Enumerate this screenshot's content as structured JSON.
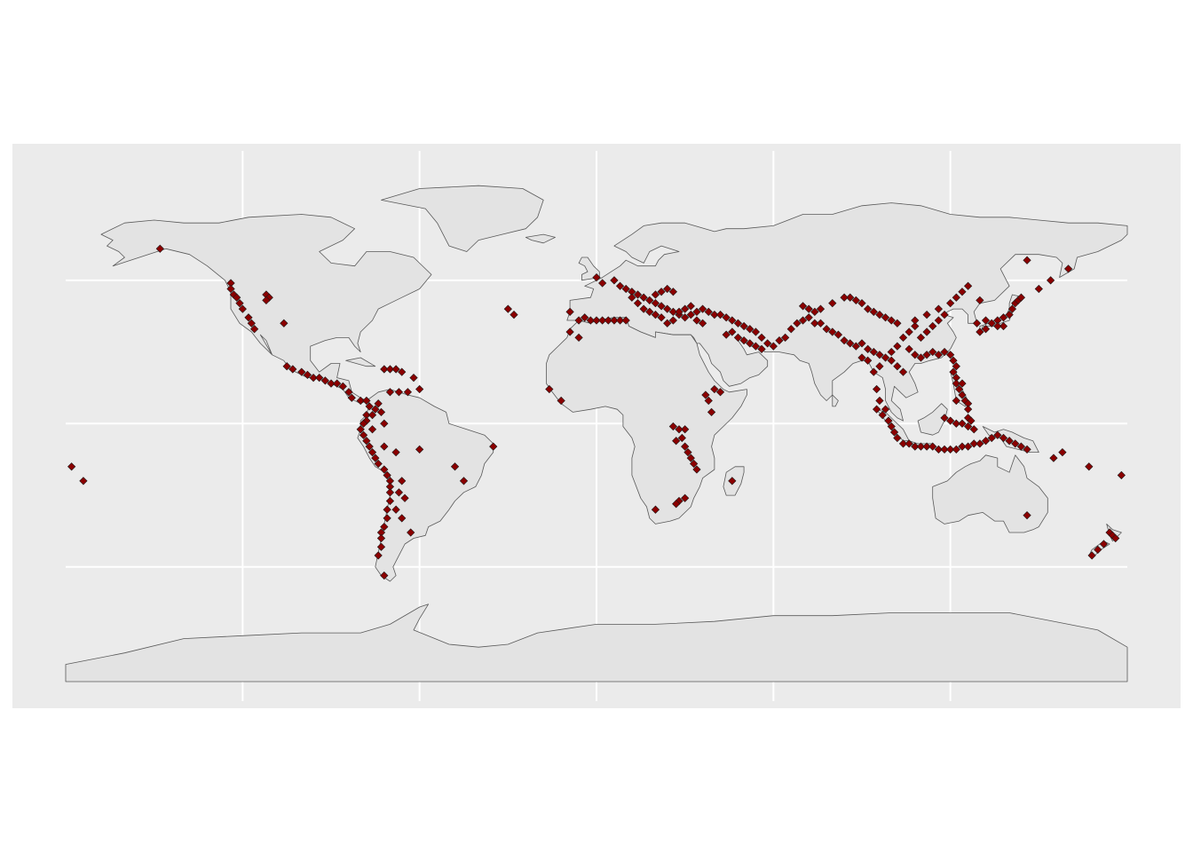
{
  "colors": {
    "panel_background": "#ebebeb",
    "land_fill": "#e3e3e3",
    "border_stroke": "#595959",
    "gridline": "#ffffff",
    "point_fill": "#8b0000",
    "point_stroke": "#1a1a1a",
    "page_background": "#ffffff"
  },
  "map": {
    "projection": "equirectangular",
    "lon_range": [
      -180,
      180
    ],
    "lat_range": [
      -90,
      84
    ],
    "grid_lon": [
      -120,
      -60,
      0,
      60,
      120
    ],
    "grid_lat": [
      -50,
      0,
      50
    ],
    "point_shape": "diamond"
  },
  "chart_data": {
    "type": "scatter",
    "title": "",
    "xlabel": "",
    "ylabel": "",
    "xlim": [
      -180,
      180
    ],
    "ylim": [
      -90,
      84
    ],
    "grid": true,
    "points": [
      [
        -148,
        61
      ],
      [
        -124,
        49
      ],
      [
        -124,
        47
      ],
      [
        -123,
        45
      ],
      [
        -122,
        44
      ],
      [
        -121,
        42
      ],
      [
        -120,
        40
      ],
      [
        -118,
        37
      ],
      [
        -117,
        35
      ],
      [
        -116,
        33
      ],
      [
        -112,
        45
      ],
      [
        -111,
        44
      ],
      [
        -112,
        43
      ],
      [
        -106,
        35
      ],
      [
        -105,
        20
      ],
      [
        -103,
        19
      ],
      [
        -100,
        18
      ],
      [
        -98,
        17
      ],
      [
        -96,
        16
      ],
      [
        -94,
        16
      ],
      [
        -92,
        15
      ],
      [
        -90,
        14
      ],
      [
        -88,
        14
      ],
      [
        -86,
        13
      ],
      [
        -84,
        11
      ],
      [
        -83,
        9
      ],
      [
        -80,
        8
      ],
      [
        -78,
        8
      ],
      [
        -72,
        19
      ],
      [
        -70,
        19
      ],
      [
        -68,
        19
      ],
      [
        -66,
        18
      ],
      [
        -62,
        16
      ],
      [
        -60,
        12
      ],
      [
        -64,
        11
      ],
      [
        -67,
        11
      ],
      [
        -70,
        11
      ],
      [
        -77,
        6
      ],
      [
        -78,
        3
      ],
      [
        -78,
        1
      ],
      [
        -79,
        0
      ],
      [
        -80,
        -2
      ],
      [
        -79,
        -4
      ],
      [
        -78,
        -6
      ],
      [
        -77,
        -8
      ],
      [
        -76,
        -10
      ],
      [
        -75,
        -12
      ],
      [
        -74,
        -14
      ],
      [
        -72,
        -16
      ],
      [
        -71,
        -18
      ],
      [
        -70,
        -20
      ],
      [
        -70,
        -22
      ],
      [
        -70,
        -24
      ],
      [
        -70,
        -27
      ],
      [
        -71,
        -30
      ],
      [
        -71,
        -33
      ],
      [
        -72,
        -36
      ],
      [
        -73,
        -38
      ],
      [
        -73,
        -40
      ],
      [
        -73,
        -43
      ],
      [
        -74,
        -46
      ],
      [
        -72,
        -53
      ],
      [
        -76,
        3
      ],
      [
        -75,
        5
      ],
      [
        -74,
        7
      ],
      [
        -73,
        4
      ],
      [
        -72,
        0
      ],
      [
        -76,
        -2
      ],
      [
        -72,
        -8
      ],
      [
        -68,
        -10
      ],
      [
        -66,
        -20
      ],
      [
        -67,
        -24
      ],
      [
        -65,
        -26
      ],
      [
        -68,
        -30
      ],
      [
        -66,
        -33
      ],
      [
        -63,
        -38
      ],
      [
        -60,
        -9
      ],
      [
        -48,
        -15
      ],
      [
        -45,
        -20
      ],
      [
        -35,
        -8
      ],
      [
        -30,
        40
      ],
      [
        -28,
        38
      ],
      [
        -178,
        -15
      ],
      [
        -174,
        -20
      ],
      [
        -9,
        39
      ],
      [
        -6,
        36
      ],
      [
        -4,
        37
      ],
      [
        -2,
        36
      ],
      [
        0,
        36
      ],
      [
        2,
        36
      ],
      [
        4,
        36
      ],
      [
        6,
        36
      ],
      [
        8,
        36
      ],
      [
        10,
        36
      ],
      [
        -9,
        32
      ],
      [
        -6,
        30
      ],
      [
        -16,
        12
      ],
      [
        -12,
        8
      ],
      [
        0,
        51
      ],
      [
        2,
        49
      ],
      [
        6,
        50
      ],
      [
        8,
        48
      ],
      [
        10,
        47
      ],
      [
        12,
        46
      ],
      [
        14,
        45
      ],
      [
        16,
        44
      ],
      [
        18,
        43
      ],
      [
        20,
        42
      ],
      [
        22,
        41
      ],
      [
        24,
        40
      ],
      [
        26,
        39
      ],
      [
        28,
        38
      ],
      [
        30,
        37
      ],
      [
        32,
        38
      ],
      [
        34,
        39
      ],
      [
        36,
        40
      ],
      [
        38,
        39
      ],
      [
        40,
        38
      ],
      [
        42,
        38
      ],
      [
        44,
        37
      ],
      [
        46,
        36
      ],
      [
        48,
        35
      ],
      [
        50,
        34
      ],
      [
        52,
        33
      ],
      [
        54,
        32
      ],
      [
        56,
        30
      ],
      [
        58,
        28
      ],
      [
        60,
        27
      ],
      [
        62,
        29
      ],
      [
        64,
        30
      ],
      [
        66,
        33
      ],
      [
        68,
        35
      ],
      [
        70,
        36
      ],
      [
        72,
        37
      ],
      [
        74,
        35
      ],
      [
        12,
        44
      ],
      [
        14,
        42
      ],
      [
        16,
        40
      ],
      [
        18,
        39
      ],
      [
        20,
        38
      ],
      [
        22,
        37
      ],
      [
        24,
        35
      ],
      [
        26,
        36
      ],
      [
        28,
        39
      ],
      [
        30,
        40
      ],
      [
        32,
        41
      ],
      [
        34,
        36
      ],
      [
        36,
        35
      ],
      [
        44,
        31
      ],
      [
        46,
        32
      ],
      [
        48,
        30
      ],
      [
        50,
        29
      ],
      [
        52,
        28
      ],
      [
        54,
        27
      ],
      [
        56,
        26
      ],
      [
        20,
        45
      ],
      [
        22,
        46
      ],
      [
        24,
        47
      ],
      [
        26,
        46
      ],
      [
        38,
        8
      ],
      [
        39,
        4
      ],
      [
        37,
        10
      ],
      [
        40,
        12
      ],
      [
        42,
        11
      ],
      [
        30,
        -2
      ],
      [
        29,
        -5
      ],
      [
        30,
        -8
      ],
      [
        31,
        -10
      ],
      [
        32,
        -12
      ],
      [
        33,
        -14
      ],
      [
        34,
        -16
      ],
      [
        28,
        -2
      ],
      [
        27,
        -6
      ],
      [
        26,
        -1
      ],
      [
        28,
        -27
      ],
      [
        30,
        -26
      ],
      [
        27,
        -28
      ],
      [
        20,
        -30
      ],
      [
        46,
        -20
      ],
      [
        76,
        35
      ],
      [
        78,
        33
      ],
      [
        80,
        32
      ],
      [
        82,
        31
      ],
      [
        84,
        29
      ],
      [
        86,
        28
      ],
      [
        88,
        27
      ],
      [
        90,
        28
      ],
      [
        92,
        26
      ],
      [
        94,
        25
      ],
      [
        96,
        24
      ],
      [
        98,
        23
      ],
      [
        100,
        22
      ],
      [
        102,
        20
      ],
      [
        104,
        18
      ],
      [
        100,
        25
      ],
      [
        102,
        27
      ],
      [
        104,
        30
      ],
      [
        106,
        32
      ],
      [
        108,
        34
      ],
      [
        102,
        35
      ],
      [
        100,
        36
      ],
      [
        98,
        37
      ],
      [
        96,
        38
      ],
      [
        94,
        39
      ],
      [
        92,
        40
      ],
      [
        90,
        42
      ],
      [
        88,
        43
      ],
      [
        86,
        44
      ],
      [
        84,
        44
      ],
      [
        80,
        42
      ],
      [
        76,
        40
      ],
      [
        74,
        39
      ],
      [
        72,
        40
      ],
      [
        70,
        41
      ],
      [
        110,
        30
      ],
      [
        112,
        32
      ],
      [
        114,
        34
      ],
      [
        116,
        36
      ],
      [
        118,
        38
      ],
      [
        116,
        40
      ],
      [
        112,
        38
      ],
      [
        108,
        36
      ],
      [
        106,
        26
      ],
      [
        108,
        24
      ],
      [
        110,
        23
      ],
      [
        112,
        24
      ],
      [
        114,
        25
      ],
      [
        116,
        24
      ],
      [
        118,
        25
      ],
      [
        94,
        18
      ],
      [
        96,
        20
      ],
      [
        92,
        22
      ],
      [
        90,
        23
      ],
      [
        95,
        12
      ],
      [
        96,
        8
      ],
      [
        98,
        5
      ],
      [
        120,
        42
      ],
      [
        122,
        44
      ],
      [
        124,
        46
      ],
      [
        126,
        48
      ],
      [
        130,
        43
      ],
      [
        132,
        36
      ],
      [
        134,
        35
      ],
      [
        136,
        36
      ],
      [
        138,
        37
      ],
      [
        140,
        38
      ],
      [
        141,
        40
      ],
      [
        142,
        42
      ],
      [
        143,
        43
      ],
      [
        144,
        44
      ],
      [
        138,
        34
      ],
      [
        136,
        34
      ],
      [
        132,
        33
      ],
      [
        130,
        32
      ],
      [
        129,
        35
      ],
      [
        120,
        24
      ],
      [
        121,
        22
      ],
      [
        122,
        20
      ],
      [
        121,
        18
      ],
      [
        122,
        16
      ],
      [
        122,
        14
      ],
      [
        123,
        12
      ],
      [
        124,
        10
      ],
      [
        125,
        8
      ],
      [
        126,
        7
      ],
      [
        126,
        5
      ],
      [
        122,
        8
      ],
      [
        124,
        14
      ],
      [
        95,
        5
      ],
      [
        97,
        3
      ],
      [
        99,
        1
      ],
      [
        100,
        -1
      ],
      [
        101,
        -3
      ],
      [
        102,
        -5
      ],
      [
        104,
        -7
      ],
      [
        106,
        -7
      ],
      [
        108,
        -8
      ],
      [
        110,
        -8
      ],
      [
        112,
        -8
      ],
      [
        114,
        -8
      ],
      [
        116,
        -9
      ],
      [
        118,
        -9
      ],
      [
        120,
        -9
      ],
      [
        122,
        -9
      ],
      [
        124,
        -8
      ],
      [
        126,
        -8
      ],
      [
        128,
        -7
      ],
      [
        130,
        -7
      ],
      [
        132,
        -6
      ],
      [
        134,
        -5
      ],
      [
        136,
        -4
      ],
      [
        138,
        -5
      ],
      [
        140,
        -6
      ],
      [
        142,
        -7
      ],
      [
        144,
        -8
      ],
      [
        146,
        -9
      ],
      [
        118,
        2
      ],
      [
        120,
        1
      ],
      [
        122,
        0
      ],
      [
        124,
        0
      ],
      [
        126,
        -1
      ],
      [
        128,
        -2
      ],
      [
        126,
        2
      ],
      [
        127,
        1
      ],
      [
        155,
        -12
      ],
      [
        158,
        -10
      ],
      [
        167,
        -15
      ],
      [
        178,
        -18
      ],
      [
        146,
        -32
      ],
      [
        174,
        -38
      ],
      [
        175,
        -39
      ],
      [
        176,
        -40
      ],
      [
        172,
        -42
      ],
      [
        170,
        -44
      ],
      [
        168,
        -46
      ],
      [
        150,
        47
      ],
      [
        154,
        50
      ],
      [
        160,
        54
      ],
      [
        146,
        57
      ]
    ]
  }
}
